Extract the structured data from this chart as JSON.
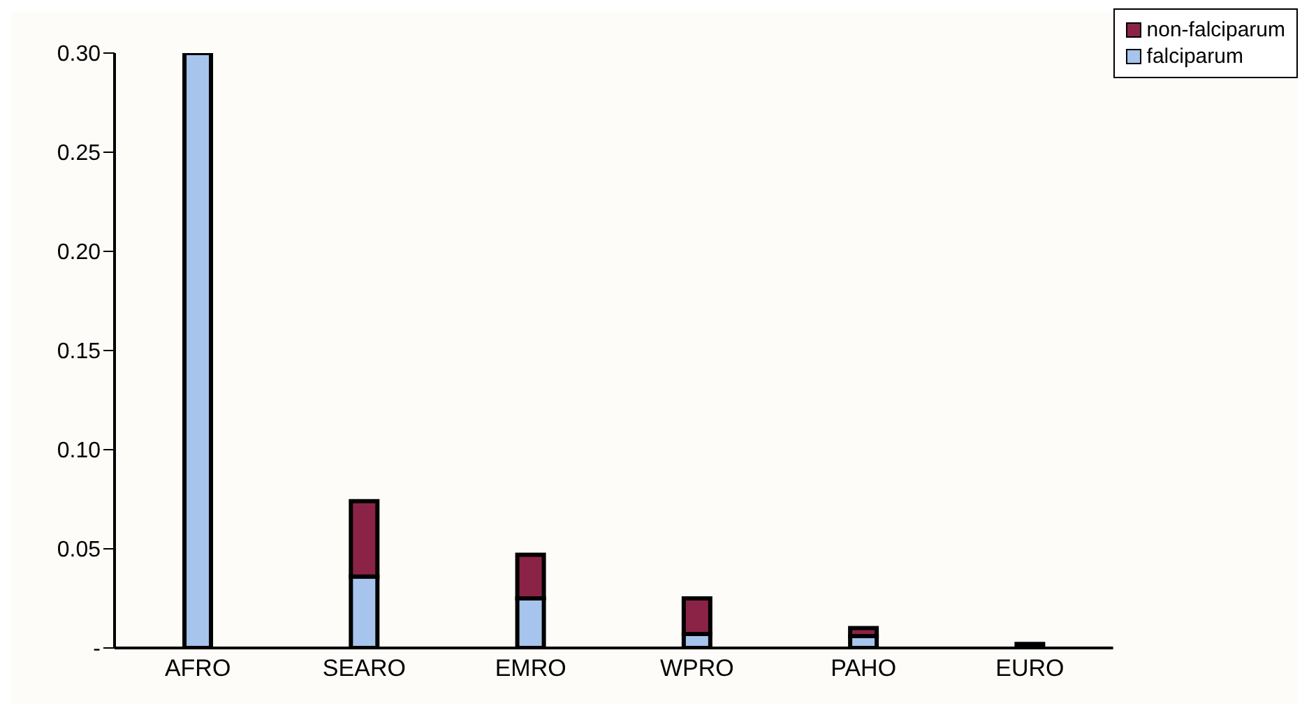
{
  "chart_data": {
    "type": "bar",
    "stacked": true,
    "categories": [
      "AFRO",
      "SEARO",
      "EMRO",
      "WPRO",
      "PAHO",
      "EURO"
    ],
    "series": [
      {
        "name": "falciparum",
        "color": "#a6c4ec",
        "values": [
          0.3,
          0.036,
          0.025,
          0.007,
          0.006,
          null
        ]
      },
      {
        "name": "non-falciparum",
        "color": "#8b2346",
        "values": [
          null,
          0.038,
          0.022,
          0.018,
          0.004,
          0.002
        ]
      }
    ],
    "ylim": [
      0,
      0.3
    ],
    "yticks": [
      {
        "value": 0,
        "label": "-"
      },
      {
        "value": 0.05,
        "label": "0.05"
      },
      {
        "value": 0.1,
        "label": "0.10"
      },
      {
        "value": 0.15,
        "label": "0.15"
      },
      {
        "value": 0.2,
        "label": "0.20"
      },
      {
        "value": 0.25,
        "label": "0.25"
      },
      {
        "value": 0.3,
        "label": "0.30"
      }
    ],
    "grid": false,
    "legend": "top right"
  }
}
